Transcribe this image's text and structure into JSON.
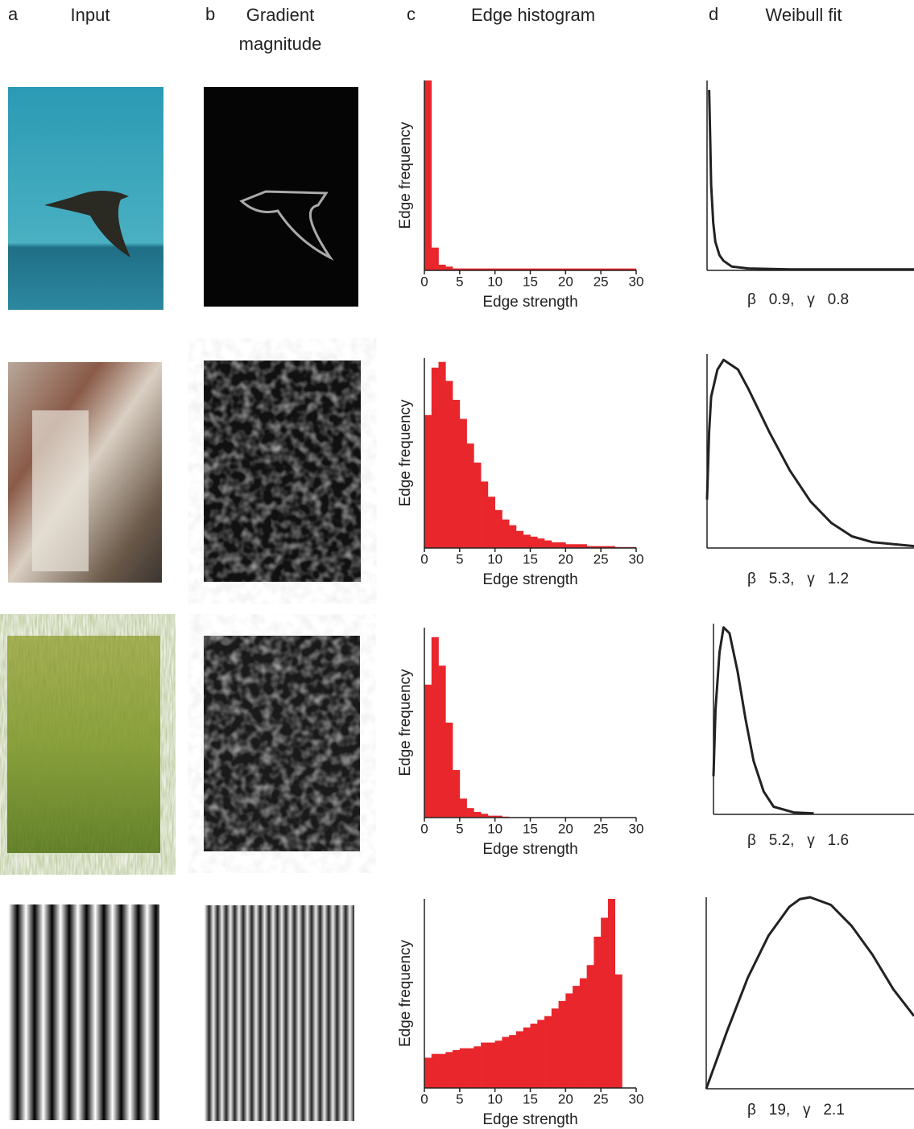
{
  "columns": [
    {
      "letter": "a",
      "title": [
        "Input"
      ]
    },
    {
      "letter": "b",
      "title": [
        "Gradient",
        "magnitude"
      ]
    },
    {
      "letter": "c",
      "title": [
        "Edge histogram"
      ]
    },
    {
      "letter": "d",
      "title": [
        "Weibull fit"
      ]
    }
  ],
  "chart_data": [
    {
      "type": "histogram",
      "color": "#e8262b",
      "xlabel": "Edge strength",
      "ylabel": "Edge frequency",
      "bins": [
        0,
        1,
        2,
        3,
        4,
        5,
        6,
        7,
        8,
        9,
        10,
        11,
        12,
        13,
        14,
        15,
        16,
        17,
        18,
        19,
        20,
        21,
        22,
        23,
        24,
        25,
        26,
        27,
        28,
        29,
        30
      ],
      "values": [
        100,
        12,
        3,
        2,
        1,
        1,
        1,
        1,
        1,
        1,
        1,
        1,
        1,
        1,
        1,
        1,
        1,
        1,
        1,
        1,
        1,
        1,
        1,
        1,
        1,
        1,
        1,
        1,
        1,
        1
      ],
      "xlim": [
        0,
        30
      ],
      "ylim": [
        0,
        100
      ],
      "xticks": [
        0,
        5,
        10,
        15,
        20,
        25,
        30
      ]
    },
    {
      "type": "histogram",
      "color": "#e8262b",
      "xlabel": "Edge strength",
      "ylabel": "Edge frequency",
      "bins": [
        0,
        1,
        2,
        3,
        4,
        5,
        6,
        7,
        8,
        9,
        10,
        11,
        12,
        13,
        14,
        15,
        16,
        17,
        18,
        19,
        20,
        21,
        22,
        23,
        24,
        25,
        26,
        27,
        28,
        29,
        30
      ],
      "values": [
        70,
        95,
        98,
        88,
        78,
        68,
        55,
        45,
        35,
        27,
        20,
        15,
        12,
        9,
        7,
        6,
        5,
        4,
        3,
        3,
        2,
        2,
        2,
        1,
        1,
        1,
        1,
        0.5,
        0.5,
        0.5
      ],
      "xlim": [
        0,
        30
      ],
      "ylim": [
        0,
        100
      ],
      "xticks": [
        0,
        5,
        10,
        15,
        20,
        25,
        30
      ]
    },
    {
      "type": "histogram",
      "color": "#e8262b",
      "xlabel": "Edge strength",
      "ylabel": "Edge frequency",
      "bins": [
        0,
        1,
        2,
        3,
        4,
        5,
        6,
        7,
        8,
        9,
        10,
        11,
        12,
        13,
        14,
        15,
        16,
        17,
        18,
        19,
        20,
        21,
        22,
        23,
        24,
        25,
        26,
        27,
        28,
        29,
        30
      ],
      "values": [
        70,
        95,
        80,
        50,
        25,
        10,
        5,
        3,
        2,
        1,
        1,
        0.5,
        0,
        0,
        0,
        0,
        0,
        0,
        0,
        0,
        0,
        0,
        0,
        0,
        0,
        0,
        0,
        0,
        0,
        0
      ],
      "xlim": [
        0,
        30
      ],
      "ylim": [
        0,
        100
      ],
      "xticks": [
        0,
        5,
        10,
        15,
        20,
        25,
        30
      ]
    },
    {
      "type": "histogram",
      "color": "#e8262b",
      "xlabel": "Edge strength",
      "ylabel": "Edge frequency",
      "bins": [
        0,
        1,
        2,
        3,
        4,
        5,
        6,
        7,
        8,
        9,
        10,
        11,
        12,
        13,
        14,
        15,
        16,
        17,
        18,
        19,
        20,
        21,
        22,
        23,
        24,
        25,
        26,
        27,
        28,
        29,
        30
      ],
      "values": [
        16,
        18,
        18,
        19,
        20,
        21,
        21,
        22,
        24,
        24,
        25,
        27,
        28,
        30,
        32,
        34,
        36,
        38,
        42,
        46,
        50,
        54,
        58,
        65,
        80,
        90,
        100,
        60,
        0,
        0
      ],
      "xlim": [
        0,
        30
      ],
      "ylim": [
        0,
        100
      ],
      "xticks": [
        0,
        5,
        10,
        15,
        20,
        25,
        30
      ]
    },
    {
      "type": "line",
      "color": "#222222",
      "annotation": "β   0.9,   γ   0.8",
      "x": [
        0.1,
        0.15,
        0.2,
        0.3,
        0.4,
        0.6,
        0.8,
        1.2,
        2,
        4,
        10
      ],
      "values": [
        95,
        70,
        45,
        25,
        15,
        8,
        5,
        2,
        1,
        0.5,
        0.5
      ],
      "xlim": [
        0,
        10
      ],
      "ylim": [
        0,
        100
      ]
    },
    {
      "type": "line",
      "color": "#222222",
      "annotation": "β   5.3,   γ   1.2",
      "x": [
        0,
        0.1,
        0.2,
        0.5,
        0.8,
        1.5,
        2,
        3,
        4,
        5,
        6,
        7,
        8,
        10
      ],
      "values": [
        25,
        60,
        78,
        92,
        97,
        92,
        82,
        60,
        40,
        24,
        13,
        6,
        3,
        1
      ],
      "xlim": [
        0,
        10
      ],
      "ylim": [
        0,
        100
      ]
    },
    {
      "type": "line",
      "color": "#222222",
      "annotation": "β   5.2,   γ   1.6",
      "x": [
        0,
        0.1,
        0.3,
        0.5,
        0.8,
        1.2,
        1.6,
        2,
        2.5,
        3,
        4,
        5
      ],
      "values": [
        20,
        55,
        85,
        98,
        95,
        75,
        50,
        28,
        12,
        4,
        1,
        0.5
      ],
      "xlim": [
        0,
        10
      ],
      "ylim": [
        0,
        100
      ]
    },
    {
      "type": "line",
      "color": "#222222",
      "annotation": "β   19,   γ   2.1",
      "x": [
        0,
        1,
        2,
        3,
        4,
        4.5,
        5,
        6,
        7,
        8,
        9,
        10
      ],
      "values": [
        0,
        30,
        58,
        80,
        95,
        99,
        100,
        96,
        85,
        70,
        52,
        38
      ],
      "xlim": [
        0,
        10
      ],
      "ylim": [
        0,
        100
      ]
    }
  ]
}
